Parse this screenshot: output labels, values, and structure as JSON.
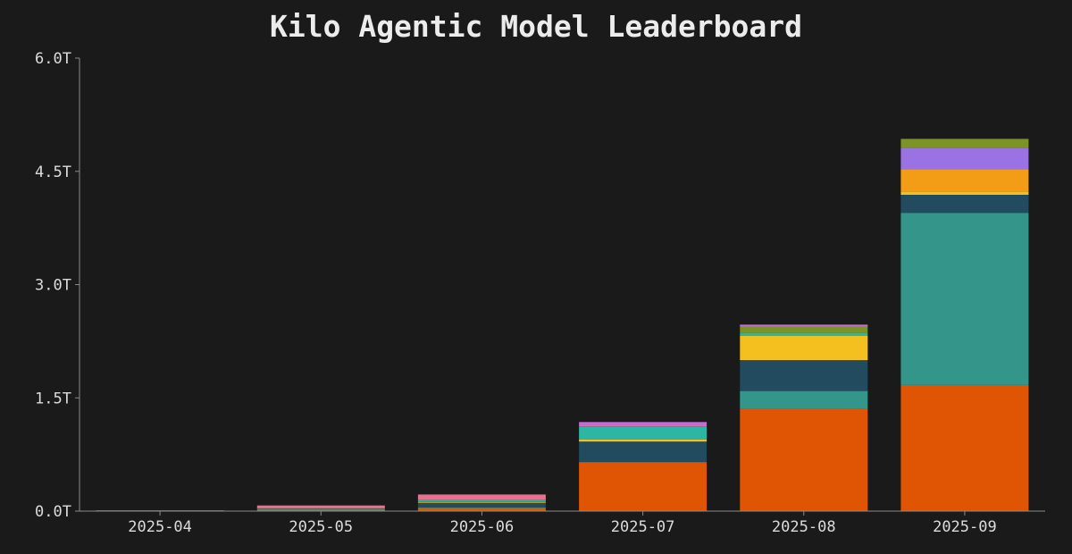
{
  "chart_data": {
    "type": "bar",
    "stacked": true,
    "title": "Kilo Agentic Model Leaderboard",
    "xlabel": "",
    "ylabel": "",
    "categories": [
      "2025-04",
      "2025-05",
      "2025-06",
      "2025-07",
      "2025-08",
      "2025-09"
    ],
    "ylim": [
      0,
      6.0
    ],
    "yticks": [
      0,
      1.5,
      3.0,
      4.5,
      6.0
    ],
    "ytick_labels": [
      "0.0T",
      "1.5T",
      "3.0T",
      "4.5T",
      "6.0T"
    ],
    "grid": false,
    "legend": false,
    "series": [
      {
        "color": "#e05504",
        "values": [
          0.005,
          0.02,
          0.04,
          0.65,
          1.35,
          1.67
        ]
      },
      {
        "color": "#34968a",
        "values": [
          0,
          0.005,
          0.01,
          0.0,
          0.24,
          2.28
        ]
      },
      {
        "color": "#224b60",
        "values": [
          0,
          0.01,
          0.06,
          0.27,
          0.41,
          0.24
        ]
      },
      {
        "color": "#f4c020",
        "values": [
          0,
          0,
          0.01,
          0.03,
          0.32,
          0.04
        ]
      },
      {
        "color": "#f29d15",
        "values": [
          0,
          0,
          0,
          0,
          0,
          0.3
        ]
      },
      {
        "color": "#9b72e4",
        "values": [
          0,
          0,
          0,
          0,
          0,
          0.28
        ]
      },
      {
        "color": "#2db6a3",
        "values": [
          0,
          0.005,
          0.03,
          0.17,
          0.04,
          0
        ]
      },
      {
        "color": "#7c9426",
        "values": [
          0,
          0,
          0,
          0,
          0.08,
          0.12
        ]
      },
      {
        "color": "#e8718d",
        "values": [
          0.005,
          0.035,
          0.07,
          0.01,
          0.01,
          0
        ]
      },
      {
        "color": "#c56bd6",
        "values": [
          0,
          0,
          0,
          0.05,
          0.02,
          0
        ]
      }
    ]
  }
}
